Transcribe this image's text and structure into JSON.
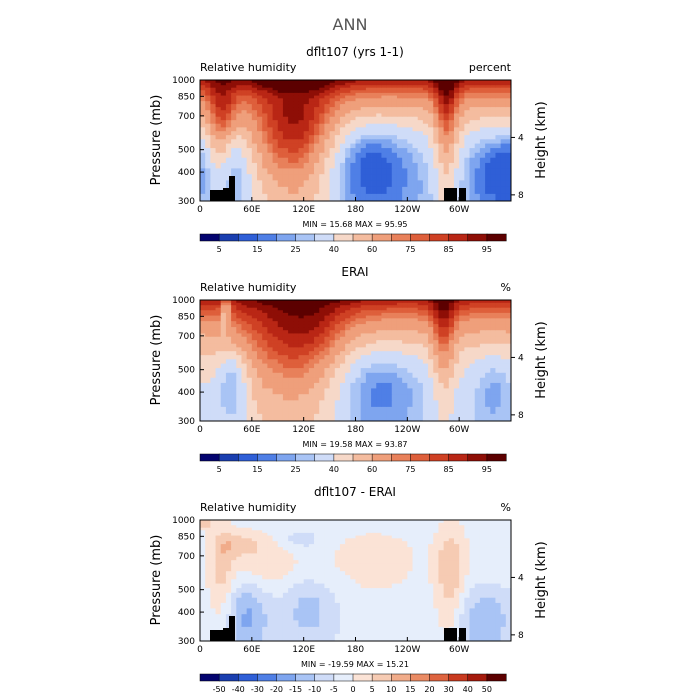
{
  "page_title": "ANN",
  "chart_data": [
    {
      "type": "heatmap",
      "title": "dflt107 (yrs 1-1)",
      "left_label": "Relative humidity",
      "units": "percent",
      "ylabel": "Pressure (mb)",
      "right_axis_label": "Height (km)",
      "x_ticks": [
        "0",
        "60E",
        "120E",
        "180",
        "120W",
        "60W"
      ],
      "x_tick_lon": [
        0,
        60,
        120,
        180,
        240,
        300
      ],
      "xlim": [
        0,
        360
      ],
      "y_ticks": [
        "300",
        "400",
        "500",
        "700",
        "850",
        "1000"
      ],
      "y_tick_p": [
        300,
        400,
        500,
        700,
        850,
        1000
      ],
      "ylim": [
        1000,
        300
      ],
      "y_scale": "log",
      "right_ticks": [
        "8",
        "4"
      ],
      "min_text": "MIN =   15.68   MAX =   95.95",
      "colorbar": {
        "labels": [
          "5",
          "15",
          "25",
          "40",
          "60",
          "75",
          "85",
          "95"
        ],
        "colors": [
          "#04046f",
          "#1a3fb0",
          "#2f5fd7",
          "#4f7fe6",
          "#7ea5ef",
          "#a9c4f5",
          "#cfdcf8",
          "#f6d8c8",
          "#f4bc9f",
          "#ef9f7b",
          "#e8805a",
          "#de5f3b",
          "#cf4124",
          "#b92615",
          "#8e0e06",
          "#5c0000"
        ]
      },
      "field": "rh",
      "grid": false
    },
    {
      "type": "heatmap",
      "title": "ERAI",
      "left_label": "Relative humidity",
      "units": "%",
      "ylabel": "Pressure (mb)",
      "right_axis_label": "Height (km)",
      "x_ticks": [
        "0",
        "60E",
        "120E",
        "180",
        "120W",
        "60W"
      ],
      "x_tick_lon": [
        0,
        60,
        120,
        180,
        240,
        300
      ],
      "xlim": [
        0,
        360
      ],
      "y_ticks": [
        "300",
        "400",
        "500",
        "700",
        "850",
        "1000"
      ],
      "y_tick_p": [
        300,
        400,
        500,
        700,
        850,
        1000
      ],
      "ylim": [
        1000,
        300
      ],
      "y_scale": "log",
      "right_ticks": [
        "8",
        "4"
      ],
      "min_text": "MIN =   19.58   MAX =   93.87",
      "colorbar": {
        "labels": [
          "5",
          "15",
          "25",
          "40",
          "60",
          "75",
          "85",
          "95"
        ],
        "colors": [
          "#04046f",
          "#1a3fb0",
          "#2f5fd7",
          "#4f7fe6",
          "#7ea5ef",
          "#a9c4f5",
          "#cfdcf8",
          "#f6d8c8",
          "#f4bc9f",
          "#ef9f7b",
          "#e8805a",
          "#de5f3b",
          "#cf4124",
          "#b92615",
          "#8e0e06",
          "#5c0000"
        ]
      },
      "field": "rh",
      "grid": false
    },
    {
      "type": "heatmap",
      "title": "dflt107 - ERAI",
      "left_label": "Relative humidity",
      "units": "%",
      "ylabel": "Pressure (mb)",
      "right_axis_label": "Height (km)",
      "x_ticks": [
        "0",
        "60E",
        "120E",
        "180",
        "120W",
        "60W"
      ],
      "x_tick_lon": [
        0,
        60,
        120,
        180,
        240,
        300
      ],
      "xlim": [
        0,
        360
      ],
      "y_ticks": [
        "300",
        "400",
        "500",
        "700",
        "850",
        "1000"
      ],
      "y_tick_p": [
        300,
        400,
        500,
        700,
        850,
        1000
      ],
      "ylim": [
        1000,
        300
      ],
      "y_scale": "log",
      "right_ticks": [
        "8",
        "4"
      ],
      "min_text": "MIN =  -19.59   MAX =   15.21",
      "colorbar": {
        "labels": [
          "-50",
          "-40",
          "-30",
          "-20",
          "-15",
          "-10",
          "-5",
          "0",
          "5",
          "10",
          "15",
          "20",
          "30",
          "40",
          "50"
        ],
        "colors": [
          "#04046f",
          "#1a3fb0",
          "#2f5fd7",
          "#4f7fe6",
          "#7ea5ef",
          "#a9c4f5",
          "#cfdcf8",
          "#e6eefb",
          "#fbe3d6",
          "#f6cbb3",
          "#f1ac8a",
          "#ea8b64",
          "#de6440",
          "#c93a1f",
          "#a51a0c",
          "#5c0000"
        ]
      },
      "field": "diff",
      "grid": false
    }
  ]
}
